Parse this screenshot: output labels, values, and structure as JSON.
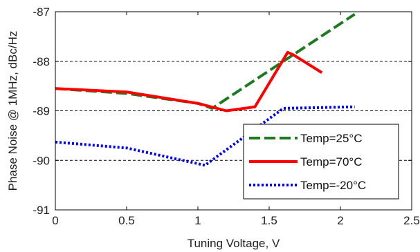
{
  "chart_data": {
    "type": "line",
    "title": "",
    "xlabel": "Tuning Voltage, V",
    "ylabel": "Phase Noise @ 1MHz, dBc/Hz",
    "xlim": [
      0,
      2.5
    ],
    "ylim": [
      -91,
      -87
    ],
    "xticks": [
      0,
      0.5,
      1,
      1.5,
      2,
      2.5
    ],
    "xtick_labels": [
      "0",
      "0.5",
      "1",
      "1.5",
      "2",
      "2.5"
    ],
    "yticks": [
      -91,
      -90,
      -89,
      -88,
      -87
    ],
    "ytick_labels": [
      "-91",
      "-90",
      "-89",
      "-88",
      "-87"
    ],
    "grid": "horizontal dashed",
    "legend_position": "lower-right",
    "series": [
      {
        "name": "Temp=25°C",
        "color": "#1e7a1e",
        "style": "dashed",
        "x": [
          0,
          0.5,
          1.0,
          1.1,
          1.6,
          2.1
        ],
        "y": [
          -88.55,
          -88.65,
          -88.85,
          -88.95,
          -88.0,
          -87.05
        ]
      },
      {
        "name": "Temp=70°C",
        "color": "#ff0000",
        "style": "solid",
        "x": [
          0,
          0.5,
          1.0,
          1.2,
          1.4,
          1.63,
          1.67,
          1.87
        ],
        "y": [
          -88.55,
          -88.62,
          -88.85,
          -89.0,
          -88.92,
          -87.82,
          -87.87,
          -88.23
        ]
      },
      {
        "name": "Temp=-20°C",
        "color": "#0000ff",
        "style": "dotted",
        "x": [
          0,
          0.5,
          1.05,
          1.6,
          2.1
        ],
        "y": [
          -89.63,
          -89.75,
          -90.1,
          -88.95,
          -88.92
        ]
      }
    ]
  }
}
